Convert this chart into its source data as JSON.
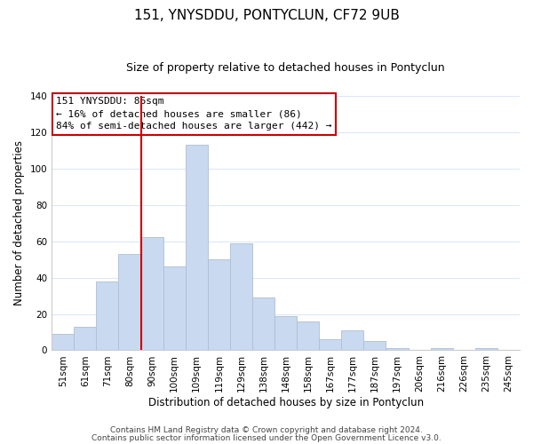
{
  "title": "151, YNYSDDU, PONTYCLUN, CF72 9UB",
  "subtitle": "Size of property relative to detached houses in Pontyclun",
  "xlabel": "Distribution of detached houses by size in Pontyclun",
  "ylabel": "Number of detached properties",
  "bar_labels": [
    "51sqm",
    "61sqm",
    "71sqm",
    "80sqm",
    "90sqm",
    "100sqm",
    "109sqm",
    "119sqm",
    "129sqm",
    "138sqm",
    "148sqm",
    "158sqm",
    "167sqm",
    "177sqm",
    "187sqm",
    "197sqm",
    "206sqm",
    "216sqm",
    "226sqm",
    "235sqm",
    "245sqm"
  ],
  "bar_values": [
    9,
    13,
    38,
    53,
    62,
    46,
    113,
    50,
    59,
    29,
    19,
    16,
    6,
    11,
    5,
    1,
    0,
    1,
    0,
    1,
    0
  ],
  "bar_color": "#c9d9f0",
  "bar_edge_color": "#aabfd8",
  "vline_color": "#cc0000",
  "vline_x_index": 3.5,
  "annotation_title": "151 YNYSDDU: 86sqm",
  "annotation_line1": "← 16% of detached houses are smaller (86)",
  "annotation_line2": "84% of semi-detached houses are larger (442) →",
  "annotation_box_color": "#ffffff",
  "annotation_box_edge": "#cc0000",
  "ylim": [
    0,
    140
  ],
  "yticks": [
    0,
    20,
    40,
    60,
    80,
    100,
    120,
    140
  ],
  "footer1": "Contains HM Land Registry data © Crown copyright and database right 2024.",
  "footer2": "Contains public sector information licensed under the Open Government Licence v3.0.",
  "bg_color": "#ffffff",
  "grid_color": "#dce8f5",
  "title_fontsize": 11,
  "subtitle_fontsize": 9,
  "axis_label_fontsize": 8.5,
  "tick_fontsize": 7.5,
  "annotation_fontsize": 8,
  "footer_fontsize": 6.5
}
